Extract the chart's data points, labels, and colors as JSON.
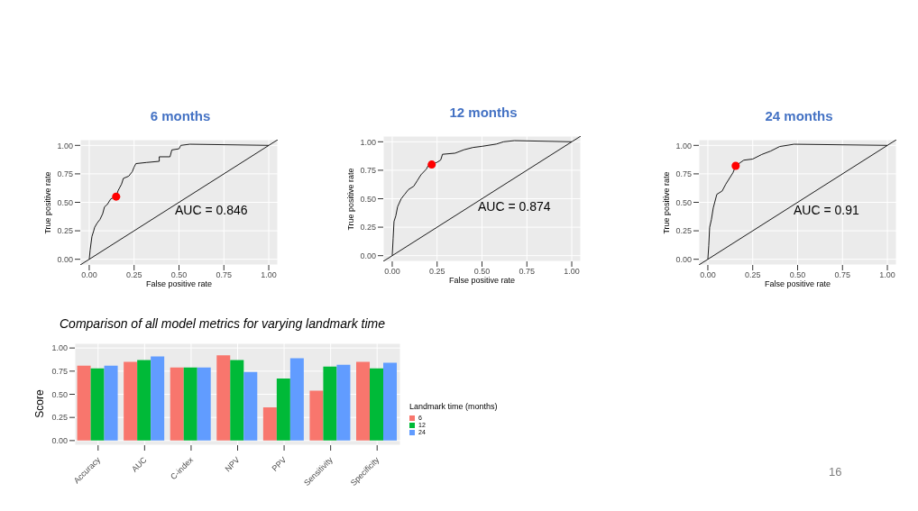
{
  "chart_data": [
    {
      "type": "line",
      "title": "6 months",
      "xlabel": "False positive rate",
      "ylabel": "True positive rate",
      "xlim": [
        -0.05,
        1.05
      ],
      "ylim": [
        -0.05,
        1.05
      ],
      "xticks": [
        {
          "value": 0,
          "label": "0.00"
        },
        {
          "value": 0.25,
          "label": "0.25"
        },
        {
          "value": 0.5,
          "label": "0.50"
        },
        {
          "value": 0.75,
          "label": "0.75"
        },
        {
          "value": 1,
          "label": "1.00"
        }
      ],
      "yticks": [
        {
          "value": 0,
          "label": "0.00"
        },
        {
          "value": 0.25,
          "label": "0.25"
        },
        {
          "value": 0.5,
          "label": "0.50"
        },
        {
          "value": 0.75,
          "label": "0.75"
        },
        {
          "value": 1,
          "label": "1.00"
        }
      ],
      "grid": true,
      "marker": "none",
      "annotations": [
        "AUC = 0.846"
      ],
      "series": [
        {
          "color": "#000000",
          "x": [
            0,
            0.005,
            0.01,
            0.015,
            0.025,
            0.03,
            0.045,
            0.06,
            0.075,
            0.085,
            0.1,
            0.12,
            0.15,
            0.16,
            0.17,
            0.18,
            0.19,
            0.22,
            0.24,
            0.25,
            0.26,
            0.32,
            0.39,
            0.39,
            0.45,
            0.46,
            0.5,
            0.51,
            0.56,
            1
          ],
          "values": [
            0,
            0.08,
            0.14,
            0.2,
            0.25,
            0.28,
            0.32,
            0.35,
            0.4,
            0.46,
            0.48,
            0.53,
            0.55,
            0.6,
            0.63,
            0.66,
            0.71,
            0.73,
            0.77,
            0.81,
            0.84,
            0.85,
            0.86,
            0.9,
            0.9,
            0.96,
            0.97,
            1,
            1.01,
            1
          ]
        },
        {
          "color": "#000000",
          "x": [
            -0.05,
            1.05
          ],
          "values": [
            -0.05,
            1.05
          ]
        },
        {
          "type": "scatter",
          "marker": "circle",
          "color": "#ff0000",
          "x": [
            0.15
          ],
          "values": [
            0.55
          ]
        }
      ]
    },
    {
      "type": "line",
      "title": "12 months",
      "xlabel": "False positive rate",
      "ylabel": "True positive rate",
      "xlim": [
        -0.05,
        1.05
      ],
      "ylim": [
        -0.05,
        1.05
      ],
      "xticks": [
        {
          "value": 0,
          "label": "0.00"
        },
        {
          "value": 0.25,
          "label": "0.25"
        },
        {
          "value": 0.5,
          "label": "0.50"
        },
        {
          "value": 0.75,
          "label": "0.75"
        },
        {
          "value": 1,
          "label": "1.00"
        }
      ],
      "yticks": [
        {
          "value": 0,
          "label": "0.00"
        },
        {
          "value": 0.25,
          "label": "0.25"
        },
        {
          "value": 0.5,
          "label": "0.50"
        },
        {
          "value": 0.75,
          "label": "0.75"
        },
        {
          "value": 1,
          "label": "1.00"
        }
      ],
      "grid": true,
      "marker": "none",
      "annotations": [
        "AUC = 0.874"
      ],
      "series": [
        {
          "color": "#000000",
          "x": [
            0,
            0.005,
            0.01,
            0.02,
            0.03,
            0.05,
            0.07,
            0.09,
            0.12,
            0.14,
            0.16,
            0.19,
            0.2,
            0.22,
            0.25,
            0.27,
            0.28,
            0.35,
            0.4,
            0.45,
            0.5,
            0.58,
            0.62,
            0.68,
            1
          ],
          "values": [
            0,
            0.15,
            0.3,
            0.35,
            0.43,
            0.5,
            0.54,
            0.58,
            0.61,
            0.66,
            0.71,
            0.76,
            0.79,
            0.8,
            0.82,
            0.84,
            0.89,
            0.9,
            0.93,
            0.95,
            0.96,
            0.98,
            1,
            1.01,
            1
          ]
        },
        {
          "color": "#000000",
          "x": [
            -0.05,
            1.05
          ],
          "values": [
            -0.05,
            1.05
          ]
        },
        {
          "type": "scatter",
          "marker": "circle",
          "color": "#ff0000",
          "x": [
            0.22
          ],
          "values": [
            0.8
          ]
        }
      ]
    },
    {
      "type": "line",
      "title": "24 months",
      "xlabel": "False positive rate",
      "ylabel": "True positive rate",
      "xlim": [
        -0.05,
        1.05
      ],
      "ylim": [
        -0.05,
        1.05
      ],
      "xticks": [
        {
          "value": 0,
          "label": "0.00"
        },
        {
          "value": 0.25,
          "label": "0.25"
        },
        {
          "value": 0.5,
          "label": "0.50"
        },
        {
          "value": 0.75,
          "label": "0.75"
        },
        {
          "value": 1,
          "label": "1.00"
        }
      ],
      "yticks": [
        {
          "value": 0,
          "label": "0.00"
        },
        {
          "value": 0.25,
          "label": "0.25"
        },
        {
          "value": 0.5,
          "label": "0.50"
        },
        {
          "value": 0.75,
          "label": "0.75"
        },
        {
          "value": 1,
          "label": "1.00"
        }
      ],
      "grid": true,
      "marker": "none",
      "annotations": [
        "AUC = 0.91"
      ],
      "series": [
        {
          "color": "#000000",
          "x": [
            0,
            0.005,
            0.01,
            0.02,
            0.03,
            0.05,
            0.08,
            0.1,
            0.12,
            0.14,
            0.155,
            0.2,
            0.25,
            0.3,
            0.35,
            0.4,
            0.48,
            1
          ],
          "values": [
            0,
            0.12,
            0.28,
            0.35,
            0.45,
            0.57,
            0.6,
            0.66,
            0.71,
            0.76,
            0.82,
            0.87,
            0.88,
            0.92,
            0.95,
            0.99,
            1.01,
            1
          ]
        },
        {
          "color": "#000000",
          "x": [
            -0.05,
            1.05
          ],
          "values": [
            -0.05,
            1.05
          ]
        },
        {
          "type": "scatter",
          "marker": "circle",
          "color": "#ff0000",
          "x": [
            0.155
          ],
          "values": [
            0.82
          ]
        }
      ]
    },
    {
      "type": "bar",
      "title": "Comparison of all model metrics for varying landmark time",
      "ylabel": "Score",
      "legend_title": "Landmark time (months)",
      "legend": "right",
      "grid": true,
      "categories": [
        "Accuracy",
        "AUC",
        "C-index",
        "NPV",
        "PPV",
        "Sensitivity",
        "Specificity"
      ],
      "ylim": [
        -0.05,
        1.05
      ],
      "yticks": [
        {
          "value": 0,
          "label": "0.00"
        },
        {
          "value": 0.25,
          "label": "0.25"
        },
        {
          "value": 0.5,
          "label": "0.50"
        },
        {
          "value": 0.75,
          "label": "0.75"
        },
        {
          "value": 1,
          "label": "1.00"
        }
      ],
      "annotations": [
        "16"
      ],
      "series": [
        {
          "name": "6",
          "color": "#f8766d",
          "values": [
            0.81,
            0.85,
            0.79,
            0.92,
            0.36,
            0.54,
            0.85
          ]
        },
        {
          "name": "12",
          "color": "#00ba38",
          "values": [
            0.78,
            0.87,
            0.79,
            0.87,
            0.67,
            0.8,
            0.78
          ]
        },
        {
          "name": "24",
          "color": "#619cff",
          "values": [
            0.81,
            0.91,
            0.79,
            0.74,
            0.89,
            0.82,
            0.84
          ]
        }
      ]
    }
  ]
}
